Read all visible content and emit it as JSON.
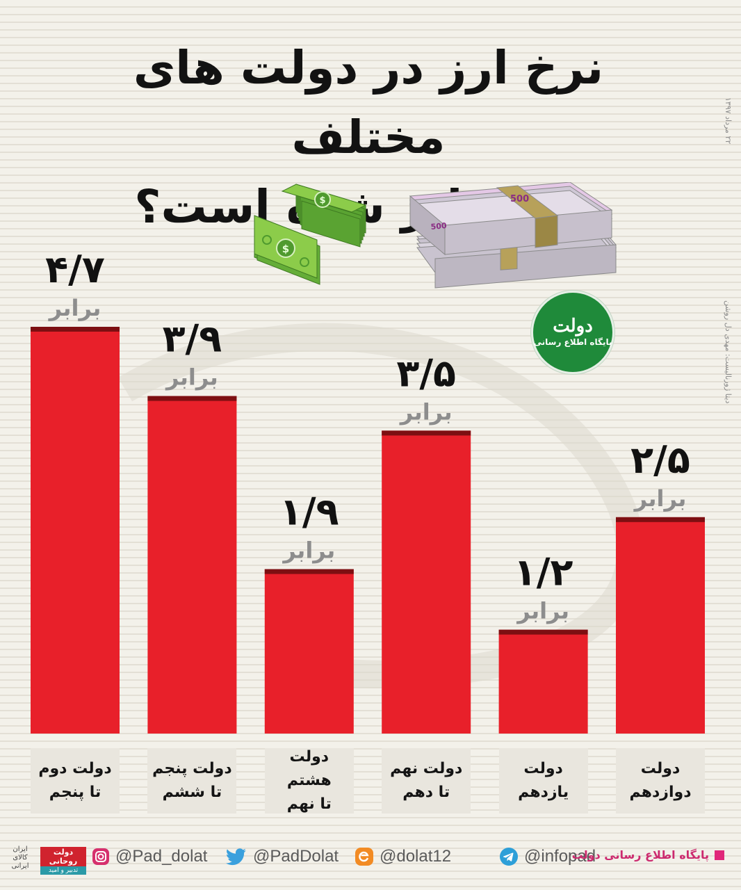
{
  "title": {
    "line1": "نرخ ارز در دولت های مختلف",
    "line2": "چند برابر شده است؟"
  },
  "side_credit": {
    "author": "دیتا ژورنالیست: مهدی دل روشن",
    "date": "۲۲ مرداد ۱۳۹۷"
  },
  "badge": {
    "name": "دولت",
    "subtitle": "پایگاه اطلاع رسانی"
  },
  "colors": {
    "bar": "#e8202a",
    "bar_dark": "#7d0f12",
    "value_text": "#111111",
    "unit_text": "#8d8d8d",
    "accent_pink": "#e0277a",
    "badge_green": "#1f8a3a"
  },
  "chart_data": {
    "type": "bar",
    "title": "نرخ ارز در دولت های مختلف چند برابر شده است؟",
    "unit": "برابر",
    "categories": [
      [
        "دولت دوم",
        "تا پنجم"
      ],
      [
        "دولت پنجم",
        "تا ششم"
      ],
      [
        "دولت هشتم",
        "تا نهم"
      ],
      [
        "دولت نهم",
        "تا دهم"
      ],
      [
        "دولت",
        "یازدهم"
      ],
      [
        "دولت",
        "دوازدهم"
      ]
    ],
    "values": [
      4.7,
      3.9,
      1.9,
      3.5,
      1.2,
      2.5
    ],
    "value_labels": [
      "۴/۷",
      "۳/۹",
      "۱/۹",
      "۳/۵",
      "۱/۲",
      "۲/۵"
    ],
    "ylim": [
      0,
      4.7
    ],
    "grid": false,
    "legend": "none"
  },
  "footer": {
    "instagram": "@Pad_dolat",
    "twitter": "@PadDolat",
    "eitaa": "@dolat12",
    "telegram": "@infopad",
    "site_label": "پایگاه اطلاع رسانی دولت",
    "gov_tag_line1": "دولت روحانی",
    "gov_tag_line2": "تدبیر و امید",
    "iran_mark": "ایران کالای ایرانی"
  }
}
